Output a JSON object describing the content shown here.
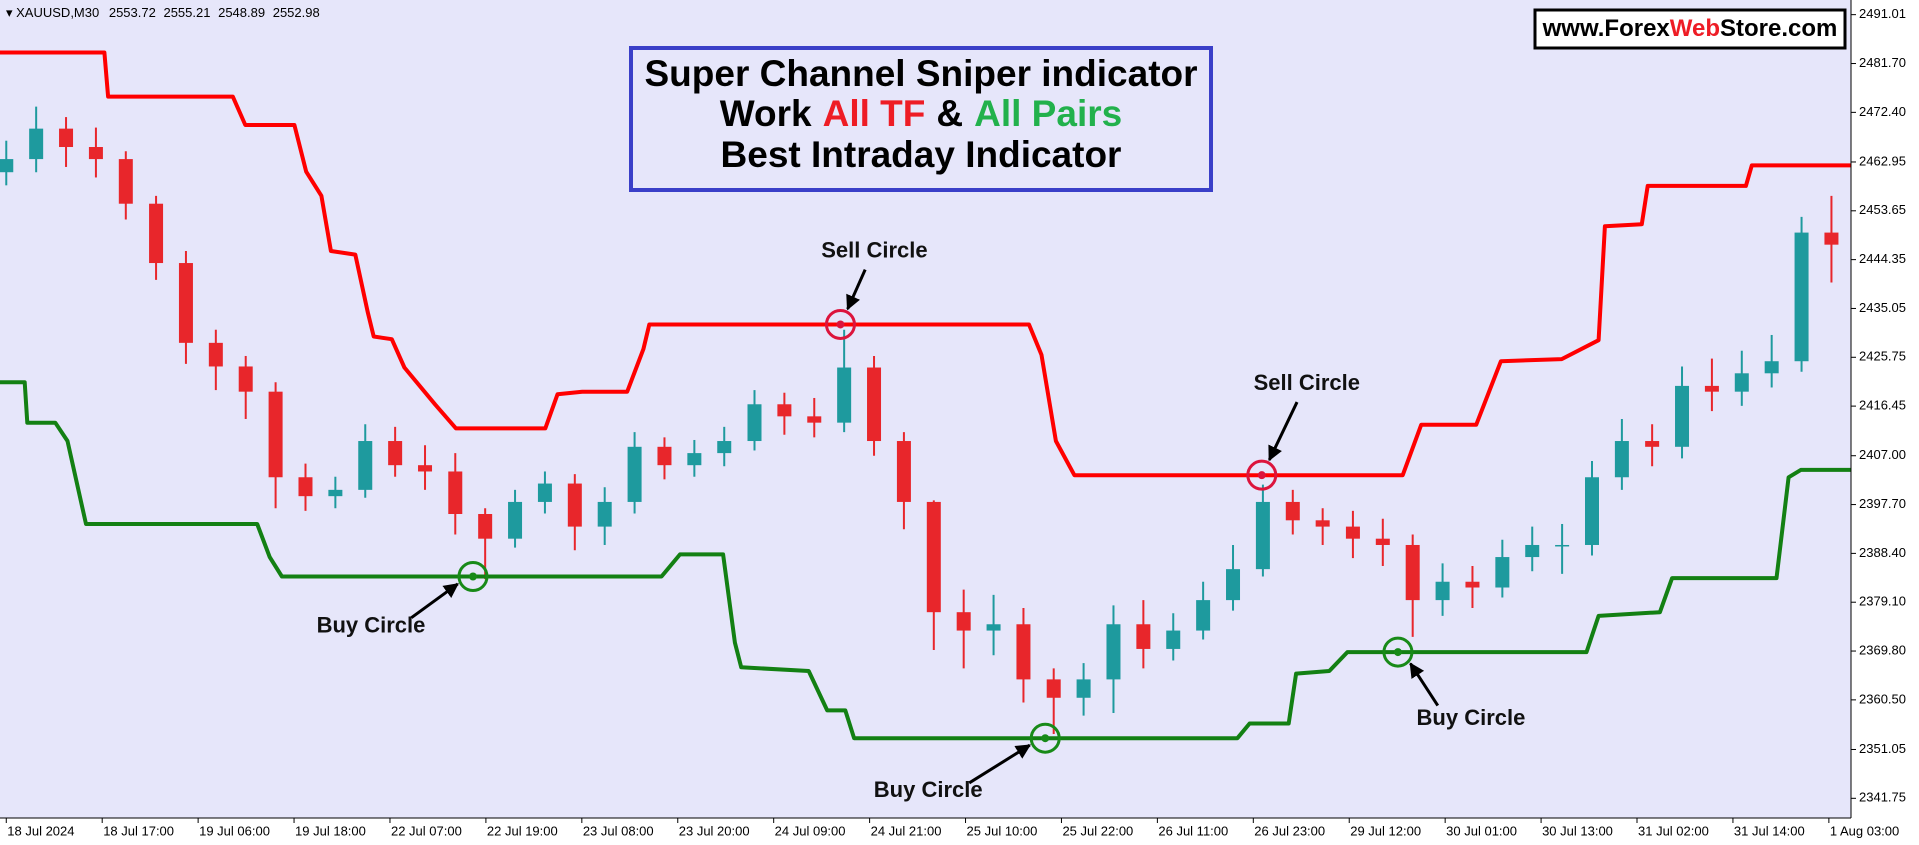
{
  "chart_data": {
    "type": "candlestick",
    "symbol": "XAUUSD,M30",
    "ohlc_info": [
      2553.72,
      2555.21,
      2548.89,
      2552.98
    ],
    "title": "Super Channel Sniper indicator",
    "subtitle_parts": [
      "Work",
      "All TF",
      "&",
      "All Pairs"
    ],
    "subtitle_colors": [
      "#000000",
      "#ee1c25",
      "#000000",
      "#22b14c"
    ],
    "subtitle2": "Best Intraday Indicator",
    "watermark_parts": [
      "www.Forex",
      "Web",
      "Store.com"
    ],
    "watermark_colors": [
      "#000000",
      "#ee1c25",
      "#000000"
    ],
    "background": "#e6e6fa",
    "up_color": "#1e9a9e",
    "down_color": "#e8262b",
    "xlim": [
      -1.7,
      500
    ],
    "ylim": [
      2338.0,
      2493.8
    ],
    "xticks": [
      {
        "value": 0,
        "label": "18 Jul 2024"
      },
      {
        "value": 26,
        "label": "18 Jul 17:00"
      },
      {
        "value": 52,
        "label": "19 Jul 06:00"
      },
      {
        "value": 78,
        "label": "19 Jul 18:00"
      },
      {
        "value": 104,
        "label": "22 Jul 07:00"
      },
      {
        "value": 130,
        "label": "22 Jul 19:00"
      },
      {
        "value": 156,
        "label": "23 Jul 08:00"
      },
      {
        "value": 182,
        "label": "23 Jul 20:00"
      },
      {
        "value": 208,
        "label": "24 Jul 09:00"
      },
      {
        "value": 234,
        "label": "24 Jul 21:00"
      },
      {
        "value": 260,
        "label": "25 Jul 10:00"
      },
      {
        "value": 286,
        "label": "25 Jul 22:00"
      },
      {
        "value": 312,
        "label": "26 Jul 11:00"
      },
      {
        "value": 338,
        "label": "26 Jul 23:00"
      },
      {
        "value": 364,
        "label": "29 Jul 12:00"
      },
      {
        "value": 390,
        "label": "30 Jul 01:00"
      },
      {
        "value": 416,
        "label": "30 Jul 13:00"
      },
      {
        "value": 442,
        "label": "31 Jul 02:00"
      },
      {
        "value": 468,
        "label": "31 Jul 14:00"
      },
      {
        "value": 494,
        "label": "1 Aug 03:00"
      }
    ],
    "yticks": [
      2491.01,
      {
        "value": 2481.7,
        "label": "2481.70"
      },
      {
        "value": 2472.4,
        "label": "2472.40"
      },
      2462.95,
      2453.65,
      2444.35,
      2435.05,
      2425.75,
      2416.45,
      {
        "value": 2407,
        "label": "2407.00"
      },
      {
        "value": 2397.7,
        "label": "2397.70"
      },
      {
        "value": 2388.4,
        "label": "2388.40"
      },
      {
        "value": 2379.1,
        "label": "2379.10"
      },
      {
        "value": 2369.8,
        "label": "2369.80"
      },
      {
        "value": 2360.5,
        "label": "2360.50"
      },
      2351.05,
      2341.75
    ],
    "candles": {
      "x": [
        0,
        8.1,
        16.2,
        24.3,
        32.4,
        40.6,
        48.7,
        56.8,
        64.9,
        73.0,
        81.1,
        89.2,
        97.3,
        105.4,
        113.5,
        121.7,
        129.8,
        137.9,
        146.0,
        154.1,
        162.2,
        170.3,
        178.4,
        186.5,
        194.6,
        202.8,
        210.9,
        219.0,
        227.1,
        235.2,
        243.3,
        251.4,
        259.5,
        267.6,
        275.7,
        283.9,
        292.0,
        300.1,
        308.2,
        316.3,
        324.4,
        332.5,
        340.6,
        348.7,
        356.8,
        365.0,
        373.1,
        381.2,
        389.3,
        397.4,
        405.5,
        413.6,
        421.7,
        429.8,
        437.9,
        446.1,
        454.2,
        462.3,
        470.4,
        478.5,
        486.6,
        494.7
      ],
      "open": [
        2461.0,
        2463.5,
        2469.3,
        2465.8,
        2463.5,
        2455.0,
        2443.7,
        2428.5,
        2424.0,
        2419.2,
        2402.9,
        2399.3,
        2400.5,
        2409.8,
        2405.2,
        2404.0,
        2395.9,
        2391.2,
        2398.2,
        2401.7,
        2393.5,
        2398.2,
        2408.7,
        2405.2,
        2407.5,
        2409.8,
        2416.8,
        2414.5,
        2413.3,
        2423.8,
        2409.8,
        2398.2,
        2377.2,
        2373.7,
        2374.9,
        2364.4,
        2360.9,
        2364.4,
        2374.9,
        2370.2,
        2373.7,
        2379.5,
        2385.4,
        2398.2,
        2394.7,
        2393.5,
        2391.2,
        2390.0,
        2379.5,
        2383.0,
        2381.9,
        2387.7,
        2390.0,
        2390.0,
        2402.9,
        2409.8,
        2408.7,
        2420.3,
        2419.2,
        2422.7,
        2425.0,
        2449.5
      ],
      "high": [
        2467.0,
        2473.5,
        2471.5,
        2469.5,
        2465.0,
        2456.5,
        2446.0,
        2431.0,
        2426.0,
        2421.0,
        2405.5,
        2403.0,
        2413.0,
        2412.5,
        2409.0,
        2407.5,
        2397.0,
        2400.5,
        2404.0,
        2403.5,
        2401.0,
        2411.5,
        2410.5,
        2410.0,
        2412.5,
        2419.5,
        2419.0,
        2418.0,
        2431.0,
        2426.0,
        2411.5,
        2398.5,
        2381.5,
        2380.5,
        2378.0,
        2366.5,
        2367.5,
        2378.5,
        2379.5,
        2377.0,
        2383.0,
        2390.0,
        2401.5,
        2400.5,
        2397.0,
        2396.5,
        2395.0,
        2392.0,
        2386.5,
        2386.0,
        2391.0,
        2393.5,
        2394.0,
        2406.0,
        2414.0,
        2413.0,
        2424.0,
        2425.5,
        2427.0,
        2430.0,
        2452.5,
        2456.5
      ],
      "low": [
        2458.5,
        2461.0,
        2462.0,
        2460.0,
        2452.0,
        2440.5,
        2424.5,
        2419.5,
        2414.0,
        2397.0,
        2396.5,
        2397.0,
        2399.0,
        2403.0,
        2400.5,
        2392.0,
        2383.5,
        2389.5,
        2396.0,
        2389.0,
        2390.0,
        2396.0,
        2402.5,
        2403.0,
        2405.0,
        2408.0,
        2411.0,
        2410.5,
        2411.5,
        2407.0,
        2393.0,
        2370.0,
        2366.5,
        2369.0,
        2360.0,
        2354.0,
        2357.5,
        2358.0,
        2366.5,
        2368.0,
        2372.0,
        2377.5,
        2384.0,
        2392.0,
        2390.0,
        2387.5,
        2386.0,
        2372.5,
        2376.5,
        2378.0,
        2380.0,
        2385.0,
        2384.5,
        2388.0,
        2400.5,
        2405.0,
        2406.5,
        2415.5,
        2416.5,
        2420.0,
        2423.0,
        2440.0
      ],
      "close": [
        2463.5,
        2469.3,
        2465.8,
        2463.5,
        2455.0,
        2443.7,
        2428.5,
        2424.0,
        2419.2,
        2402.9,
        2399.3,
        2400.5,
        2409.8,
        2405.2,
        2404.0,
        2395.9,
        2391.2,
        2398.2,
        2401.7,
        2393.5,
        2398.2,
        2408.7,
        2405.2,
        2407.5,
        2409.8,
        2416.8,
        2414.5,
        2413.3,
        2423.8,
        2409.8,
        2398.2,
        2377.2,
        2373.7,
        2374.9,
        2364.4,
        2360.9,
        2364.4,
        2374.9,
        2370.2,
        2373.7,
        2379.5,
        2385.4,
        2398.2,
        2394.7,
        2393.5,
        2391.2,
        2390.0,
        2379.5,
        2383.0,
        2381.9,
        2387.7,
        2390.0,
        2390.0,
        2402.9,
        2409.8,
        2408.7,
        2420.3,
        2419.2,
        2422.7,
        2425.0,
        2449.5,
        2447.2
      ]
    },
    "series": [
      {
        "color": "#ff0000",
        "x": [
          -1.7,
          26.6,
          27.6,
          61.4,
          64.8,
          78.1,
          81.3,
          85.4,
          88,
          94.6,
          98,
          99.6,
          104.5,
          107.9,
          116.2,
          121.9,
          146.1,
          149.4,
          156.1,
          168.3,
          172.7,
          174.3,
          277.2,
          280.6,
          284.5,
          289.5,
          378.5,
          383.5,
          398.4,
          405.1,
          421.6,
          431.6,
          433.3,
          443.3,
          444.9,
          471.5,
          473.1,
          500
        ],
        "values": [
          2483.8,
          2483.8,
          2475.4,
          2475.4,
          2470,
          2470,
          2461.1,
          2456.5,
          2446,
          2445.3,
          2434.3,
          2429.7,
          2429.2,
          2423.8,
          2416.8,
          2412.2,
          2412.2,
          2418.7,
          2419.2,
          2419.2,
          2427.3,
          2432,
          2432,
          2426.2,
          2409.8,
          2403.3,
          2403.3,
          2412.9,
          2412.9,
          2425,
          2425.4,
          2429,
          2450.7,
          2451.1,
          2458.4,
          2458.4,
          2462.3,
          2462.3
        ]
      },
      {
        "color": "#138013",
        "x": [
          -1.7,
          5,
          5.7,
          13.3,
          16.6,
          21.6,
          68,
          71.4,
          74.7,
          177.6,
          182.6,
          194.3,
          197.5,
          199.2,
          217.5,
          222.5,
          227.4,
          229.8,
          333.7,
          337,
          347.6,
          349.6,
          358.6,
          363.5,
          428.3,
          431.6,
          448.2,
          451.5,
          479.8,
          483.1,
          486.4,
          500
        ],
        "values": [
          2421,
          2421,
          2413.3,
          2413.3,
          2409.8,
          2394,
          2394,
          2387.7,
          2384,
          2384,
          2388.2,
          2388.2,
          2371.4,
          2366.7,
          2366,
          2358.5,
          2358.5,
          2353.2,
          2353.2,
          2356,
          2356,
          2365.5,
          2366,
          2369.6,
          2369.6,
          2376.5,
          2377.2,
          2383.7,
          2383.7,
          2402.9,
          2404.3,
          2404.3
        ]
      }
    ],
    "signals": [
      {
        "label": "Sell Circle",
        "x": 226.1,
        "value": 2432,
        "color": "#dc143c"
      },
      {
        "label": "Buy Circle",
        "x": 126.5,
        "value": 2384,
        "color": "#188a18"
      },
      {
        "label": "Buy Circle",
        "x": 281.6,
        "value": 2353.2,
        "color": "#188a18"
      },
      {
        "label": "Sell Circle",
        "x": 340.3,
        "value": 2403.3,
        "color": "#dc143c"
      },
      {
        "label": "Buy Circle",
        "x": 377.2,
        "value": 2369.6,
        "color": "#188a18"
      }
    ]
  }
}
